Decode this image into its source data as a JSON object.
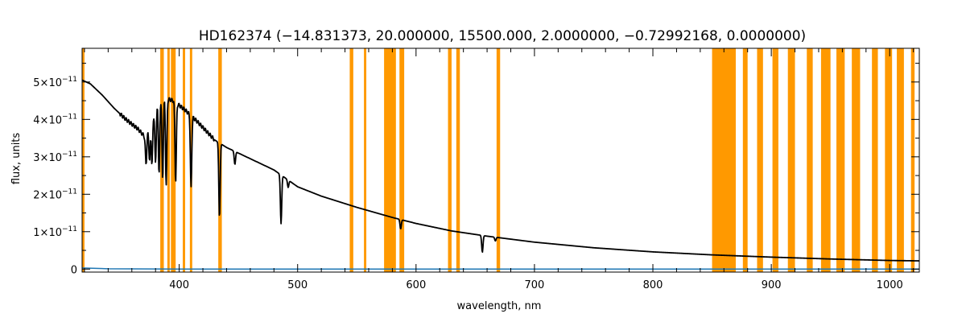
{
  "chart_data": {
    "type": "line",
    "title": "HD162374   (−14.831373, 20.000000, 15500.000, 2.0000000, −0.72992168, 0.0000000)",
    "xlabel": "wavelength, nm",
    "ylabel": "flux, units",
    "xlim": [
      318,
      1025
    ],
    "ylim": [
      -8e-13,
      5.9e-11
    ],
    "x_ticks": [
      {
        "value": 400,
        "label": "400"
      },
      {
        "value": 500,
        "label": "500"
      },
      {
        "value": 600,
        "label": "600"
      },
      {
        "value": 700,
        "label": "700"
      },
      {
        "value": 800,
        "label": "800"
      },
      {
        "value": 900,
        "label": "900"
      },
      {
        "value": 1000,
        "label": "1000"
      }
    ],
    "y_ticks": [
      {
        "value": 0,
        "mantissa": "0",
        "exponent": ""
      },
      {
        "value": 1e-11,
        "mantissa": "1×10",
        "exponent": "−11"
      },
      {
        "value": 2e-11,
        "mantissa": "2×10",
        "exponent": "−11"
      },
      {
        "value": 3e-11,
        "mantissa": "3×10",
        "exponent": "−11"
      },
      {
        "value": 4e-11,
        "mantissa": "4×10",
        "exponent": "−11"
      },
      {
        "value": 5e-11,
        "mantissa": "5×10",
        "exponent": "−11"
      }
    ],
    "masked_regions": [
      [
        318,
        320
      ],
      [
        384,
        387
      ],
      [
        390,
        392
      ],
      [
        393,
        397
      ],
      [
        403,
        405
      ],
      [
        409,
        411
      ],
      [
        433,
        436
      ],
      [
        544,
        547
      ],
      [
        556,
        558
      ],
      [
        573,
        583
      ],
      [
        586,
        590
      ],
      [
        627,
        630
      ],
      [
        634,
        637
      ],
      [
        668,
        671
      ],
      [
        850,
        870
      ],
      [
        876,
        880
      ],
      [
        888,
        893
      ],
      [
        901,
        906
      ],
      [
        914,
        920
      ],
      [
        930,
        935
      ],
      [
        942,
        950
      ],
      [
        955,
        962
      ],
      [
        968,
        975
      ],
      [
        985,
        990
      ],
      [
        996,
        1002
      ],
      [
        1006,
        1012
      ],
      [
        1018,
        1021
      ]
    ],
    "series": [
      {
        "color": "#000000",
        "continuum": [
          [
            318,
            5.05e-11
          ],
          [
            325,
            4.95e-11
          ],
          [
            335,
            4.65e-11
          ],
          [
            345,
            4.3e-11
          ],
          [
            355,
            4e-11
          ],
          [
            365,
            3.75e-11
          ],
          [
            372,
            3.5e-11
          ],
          [
            378,
            4.1e-11
          ],
          [
            385,
            4.6e-11
          ],
          [
            395,
            4.5e-11
          ],
          [
            405,
            4.25e-11
          ],
          [
            415,
            3.95e-11
          ],
          [
            430,
            3.45e-11
          ],
          [
            440,
            3.25e-11
          ],
          [
            460,
            2.95e-11
          ],
          [
            480,
            2.65e-11
          ],
          [
            500,
            2.2e-11
          ],
          [
            520,
            1.95e-11
          ],
          [
            550,
            1.65e-11
          ],
          [
            580,
            1.38e-11
          ],
          [
            600,
            1.22e-11
          ],
          [
            630,
            1.02e-11
          ],
          [
            660,
            8.8e-12
          ],
          [
            700,
            7.2e-12
          ],
          [
            750,
            5.7e-12
          ],
          [
            800,
            4.6e-12
          ],
          [
            850,
            3.8e-12
          ],
          [
            900,
            3.2e-12
          ],
          [
            950,
            2.7e-12
          ],
          [
            1000,
            2.3e-12
          ],
          [
            1025,
            2.2e-12
          ]
        ],
        "absorption_lines": [
          [
            372,
            7e-12
          ],
          [
            375,
            9e-12
          ],
          [
            377,
            1.2e-11
          ],
          [
            380,
            1.4e-11
          ],
          [
            383,
            1.9e-11
          ],
          [
            386,
            2.2e-11
          ],
          [
            389,
            2.3e-11
          ],
          [
            397,
            2.1e-11
          ],
          [
            410,
            1.95e-11
          ],
          [
            434,
            2e-11
          ],
          [
            447,
            3.5e-12
          ],
          [
            486,
            1.3e-11
          ],
          [
            492,
            2e-12
          ],
          [
            587,
            2.5e-12
          ],
          [
            656,
            4.5e-12
          ],
          [
            667,
            1e-12
          ]
        ]
      },
      {
        "color": "#1f77b4",
        "points": [
          [
            318,
            3e-13
          ],
          [
            340,
            1e-13
          ],
          [
            400,
            0.0
          ],
          [
            1025,
            0.0
          ]
        ]
      }
    ]
  }
}
